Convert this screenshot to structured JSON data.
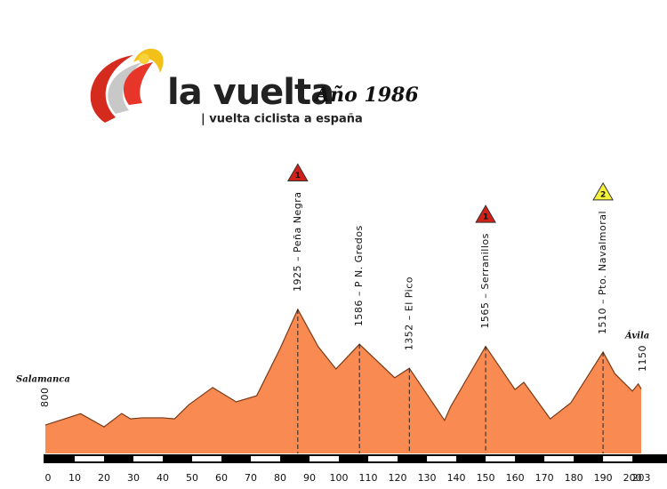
{
  "header": {
    "brand": "la vuelta",
    "subtitle": "| vuelta ciclista a españa",
    "year": "Año 1986"
  },
  "chart_data": {
    "type": "area",
    "color": "#f98b52",
    "line_color": "#7a3a18",
    "x": [
      0,
      12,
      20,
      26,
      29,
      33,
      40,
      44,
      49,
      57,
      65,
      72,
      80,
      86,
      93,
      99,
      107,
      119,
      124,
      136,
      138,
      150,
      160,
      163,
      172,
      179,
      190,
      194,
      200,
      202,
      203
    ],
    "values": [
      800,
      910,
      782,
      912,
      860,
      870,
      870,
      860,
      1000,
      1165,
      1025,
      1085,
      1545,
      1925,
      1560,
      1345,
      1586,
      1260,
      1352,
      845,
      975,
      1565,
      1145,
      1215,
      860,
      1015,
      1510,
      1300,
      1130,
      1200,
      1150
    ],
    "xlim": [
      0,
      203
    ],
    "xticks": [
      0,
      10,
      20,
      30,
      40,
      50,
      60,
      70,
      80,
      90,
      100,
      110,
      120,
      130,
      140,
      150,
      160,
      170,
      180,
      190,
      200,
      203
    ],
    "start": {
      "name": "Salamanca",
      "elevation": "800"
    },
    "finish": {
      "name": "Ávila",
      "elevation": "1150"
    },
    "climbs": [
      {
        "km": 86,
        "label": "1925 – Peña Negra",
        "category": 1,
        "category_color": "#d0201a"
      },
      {
        "km": 107,
        "label": "1586 – P N. Gredos"
      },
      {
        "km": 124,
        "label": "1352 – El Pico"
      },
      {
        "km": 150,
        "label": "1565 – Serranillos",
        "category": 1,
        "category_color": "#d0201a"
      },
      {
        "km": 190,
        "label": "1510 – Pto. Navalmoral",
        "category": 2,
        "category_color": "#f5f03a"
      }
    ]
  }
}
